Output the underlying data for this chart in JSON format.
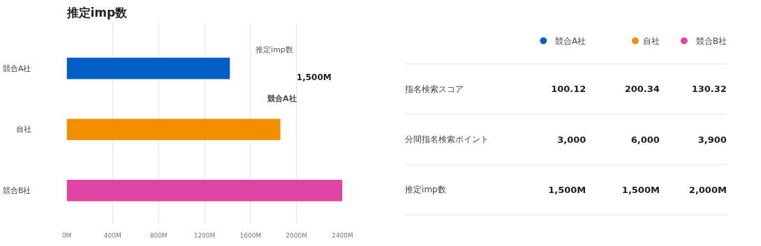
{
  "chart_data": [
    {
      "type": "bar",
      "orientation": "horizontal",
      "title": "推定imp数",
      "categories": [
        "競合A社",
        "自社",
        "競合B社"
      ],
      "values": [
        1420,
        1860,
        2400
      ],
      "colors": [
        "#005ec6",
        "#f08f00",
        "#e044a2"
      ],
      "xlim": [
        0,
        2400
      ],
      "xticks": [
        {
          "value": 0,
          "label": "0M"
        },
        {
          "value": 400,
          "label": "400M"
        },
        {
          "value": 800,
          "label": "800M"
        },
        {
          "value": 1200,
          "label": "1200M"
        },
        {
          "value": 1600,
          "label": "1600M"
        },
        {
          "value": 2000,
          "label": "2000M"
        },
        {
          "value": 2400,
          "label": "2400M"
        }
      ],
      "grid": "x",
      "annotations": [
        "推定imp数",
        "競合A社",
        "1,500M"
      ]
    },
    {
      "type": "other",
      "categories": [
        "競合A社",
        "自社",
        "競合B社"
      ],
      "colors": [
        "#005ec6",
        "#f08f00",
        "#e044a2"
      ],
      "y_categories": [
        "指名検索スコア",
        "分間指名検索ポイント",
        "推定imp数"
      ],
      "cell_labels": [
        [
          "100.12",
          "200.34",
          "130.32"
        ],
        [
          "3,000",
          "6,000",
          "3,900"
        ],
        [
          "1,500M",
          "1,500M",
          "2,000M"
        ]
      ]
    }
  ]
}
